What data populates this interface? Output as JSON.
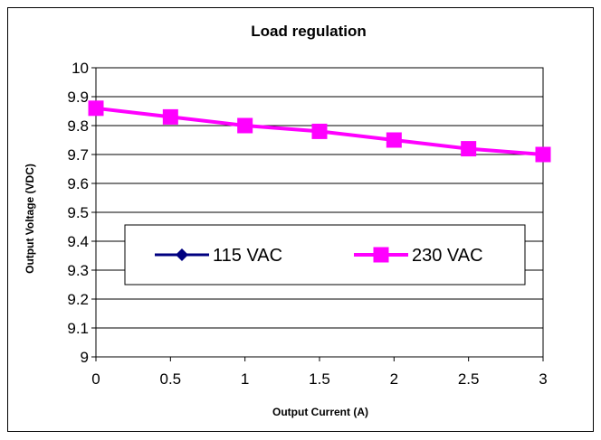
{
  "chart_data": {
    "type": "line",
    "title": "Load regulation",
    "xlabel": "Output Current (A)",
    "ylabel": "Output Voltage (VDC)",
    "x": [
      0,
      0.5,
      1,
      1.5,
      2,
      2.5,
      3
    ],
    "x_tick_labels": [
      "0",
      "0.5",
      "1",
      "1.5",
      "2",
      "2.5",
      "3"
    ],
    "y_tick_labels": [
      "9",
      "9.1",
      "9.2",
      "9.3",
      "9.4",
      "9.5",
      "9.6",
      "9.7",
      "9.8",
      "9.9",
      "10"
    ],
    "xlim": [
      0,
      3
    ],
    "ylim": [
      9,
      10
    ],
    "grid": "horizontal",
    "legend_position": "center-bottom",
    "series": [
      {
        "name": "115 VAC",
        "values": [
          9.86,
          9.83,
          9.8,
          9.78,
          9.75,
          9.72,
          9.7
        ],
        "color": "#000080",
        "marker": "diamond"
      },
      {
        "name": "230 VAC",
        "values": [
          9.86,
          9.83,
          9.8,
          9.78,
          9.75,
          9.72,
          9.7
        ],
        "color": "#ff00ff",
        "marker": "square"
      }
    ]
  }
}
